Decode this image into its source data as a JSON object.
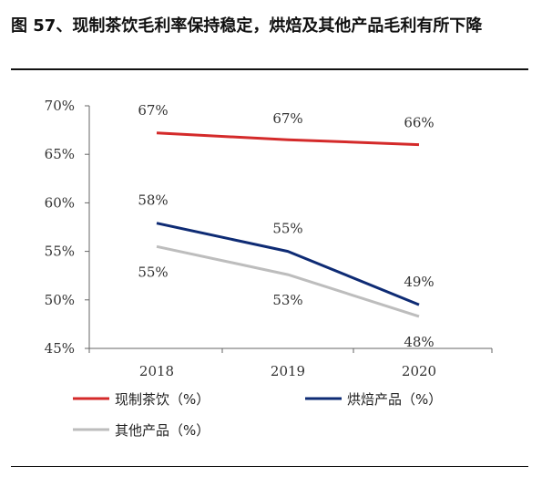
{
  "header": {
    "title": "图 57、现制茶饮毛利率保持稳定，烘焙及其他产品毛利有所下降"
  },
  "chart_data": {
    "type": "line",
    "title": "图 57、现制茶饮毛利率保持稳定，烘焙及其他产品毛利有所下降",
    "xlabel": "",
    "ylabel": "",
    "categories": [
      "2018",
      "2019",
      "2020"
    ],
    "ylim": [
      45,
      70
    ],
    "yticks": [
      45,
      50,
      55,
      60,
      65,
      70
    ],
    "ytick_labels": [
      "45%",
      "50%",
      "55%",
      "60%",
      "65%",
      "70%"
    ],
    "grid": false,
    "legend_position": "bottom",
    "series": [
      {
        "name": "现制茶饮（%）",
        "values": [
          67.2,
          66.5,
          66.0
        ],
        "labels": [
          "67%",
          "67%",
          "66%"
        ],
        "color": "#d42a2a"
      },
      {
        "name": "烘焙产品（%）",
        "values": [
          57.9,
          55.0,
          49.5
        ],
        "labels": [
          "58%",
          "55%",
          "49%"
        ],
        "color": "#0e2b74"
      },
      {
        "name": "其他产品（%）",
        "values": [
          55.5,
          52.6,
          48.3
        ],
        "labels": [
          "55%",
          "53%",
          "48%"
        ],
        "color": "#bdbdbd"
      }
    ]
  }
}
